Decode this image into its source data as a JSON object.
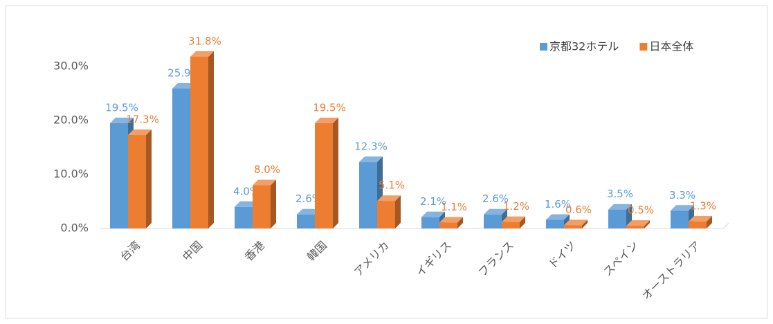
{
  "chart_data": {
    "type": "bar3d",
    "categories": [
      "台湾",
      "中国",
      "香港",
      "韓国",
      "アメリカ",
      "イギリス",
      "フランス",
      "ドイツ",
      "スペイン",
      "オーストラリア"
    ],
    "series": [
      {
        "name": "京都32ホテル",
        "color": "#5b9bd5",
        "values": [
          19.5,
          25.9,
          4.0,
          2.6,
          12.3,
          2.1,
          2.6,
          1.6,
          3.5,
          3.3
        ],
        "value_labels": [
          "19.5%",
          "25.9%",
          "4.0%",
          "2.6%",
          "12.3%",
          "2.1%",
          "2.6%",
          "1.6%",
          "3.5%",
          "3.3%"
        ]
      },
      {
        "name": "日本全体",
        "color": "#ed7d31",
        "values": [
          17.3,
          31.8,
          8.0,
          19.5,
          5.1,
          1.1,
          1.2,
          0.6,
          0.5,
          1.3
        ],
        "value_labels": [
          "17.3%",
          "31.8%",
          "8.0%",
          "19.5%",
          "5.1%",
          "1.1%",
          "1.2%",
          "0.6%",
          "0.5%",
          "1.3%"
        ]
      }
    ],
    "ylim": [
      0,
      35
    ],
    "yticks": [
      {
        "value": 0,
        "label": "0.0%"
      },
      {
        "value": 10,
        "label": "10.0%"
      },
      {
        "value": 20,
        "label": "20.0%"
      },
      {
        "value": 30,
        "label": "30.0%"
      }
    ],
    "grid": false,
    "legend": "top-right"
  }
}
